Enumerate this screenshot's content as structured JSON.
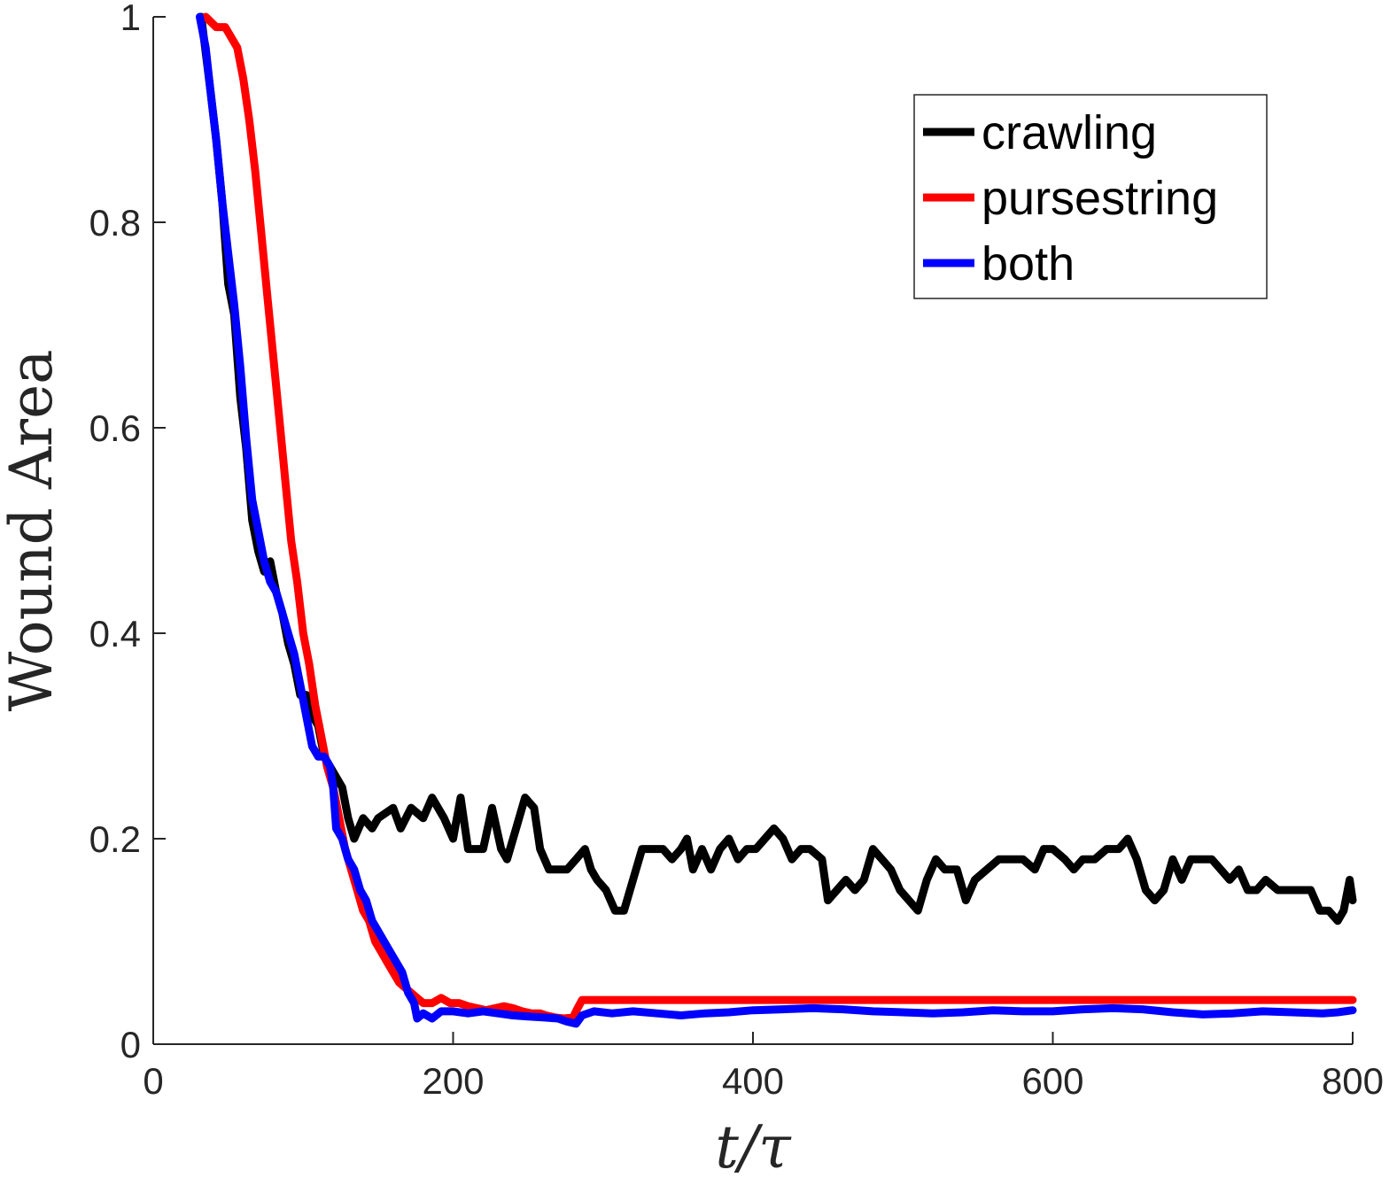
{
  "chart_data": {
    "type": "line",
    "title": "",
    "xlabel": "t/τ",
    "ylabel": "Wound Area",
    "xlim": [
      0,
      800
    ],
    "ylim": [
      0,
      1
    ],
    "xticks": [
      "0",
      "200",
      "400",
      "600",
      "800"
    ],
    "yticks": [
      "0",
      "0.2",
      "0.4",
      "0.6",
      "0.8",
      "1"
    ],
    "grid": false,
    "legend_position": "top-right",
    "series": [
      {
        "name": "crawling",
        "color": "#000000",
        "points": [
          [
            32,
            1.0
          ],
          [
            38,
            0.93
          ],
          [
            42,
            0.88
          ],
          [
            46,
            0.82
          ],
          [
            50,
            0.74
          ],
          [
            54,
            0.71
          ],
          [
            58,
            0.63
          ],
          [
            62,
            0.58
          ],
          [
            66,
            0.51
          ],
          [
            70,
            0.48
          ],
          [
            74,
            0.46
          ],
          [
            78,
            0.47
          ],
          [
            82,
            0.44
          ],
          [
            86,
            0.42
          ],
          [
            90,
            0.39
          ],
          [
            94,
            0.37
          ],
          [
            98,
            0.34
          ],
          [
            102,
            0.34
          ],
          [
            106,
            0.32
          ],
          [
            110,
            0.31
          ],
          [
            114,
            0.28
          ],
          [
            118,
            0.27
          ],
          [
            122,
            0.26
          ],
          [
            126,
            0.25
          ],
          [
            130,
            0.22
          ],
          [
            134,
            0.2
          ],
          [
            140,
            0.22
          ],
          [
            146,
            0.21
          ],
          [
            150,
            0.22
          ],
          [
            160,
            0.23
          ],
          [
            165,
            0.21
          ],
          [
            172,
            0.23
          ],
          [
            180,
            0.22
          ],
          [
            186,
            0.24
          ],
          [
            194,
            0.22
          ],
          [
            200,
            0.2
          ],
          [
            205,
            0.24
          ],
          [
            210,
            0.19
          ],
          [
            220,
            0.19
          ],
          [
            226,
            0.23
          ],
          [
            232,
            0.19
          ],
          [
            236,
            0.18
          ],
          [
            242,
            0.21
          ],
          [
            248,
            0.24
          ],
          [
            254,
            0.23
          ],
          [
            258,
            0.19
          ],
          [
            264,
            0.17
          ],
          [
            270,
            0.17
          ],
          [
            276,
            0.17
          ],
          [
            282,
            0.18
          ],
          [
            288,
            0.19
          ],
          [
            292,
            0.17
          ],
          [
            296,
            0.16
          ],
          [
            302,
            0.15
          ],
          [
            308,
            0.13
          ],
          [
            314,
            0.13
          ],
          [
            320,
            0.16
          ],
          [
            326,
            0.19
          ],
          [
            334,
            0.19
          ],
          [
            340,
            0.19
          ],
          [
            346,
            0.18
          ],
          [
            352,
            0.19
          ],
          [
            356,
            0.2
          ],
          [
            360,
            0.17
          ],
          [
            366,
            0.19
          ],
          [
            372,
            0.17
          ],
          [
            378,
            0.19
          ],
          [
            384,
            0.2
          ],
          [
            390,
            0.18
          ],
          [
            396,
            0.19
          ],
          [
            402,
            0.19
          ],
          [
            408,
            0.2
          ],
          [
            414,
            0.21
          ],
          [
            420,
            0.2
          ],
          [
            426,
            0.18
          ],
          [
            432,
            0.19
          ],
          [
            438,
            0.19
          ],
          [
            446,
            0.18
          ],
          [
            450,
            0.14
          ],
          [
            456,
            0.15
          ],
          [
            462,
            0.16
          ],
          [
            468,
            0.15
          ],
          [
            474,
            0.16
          ],
          [
            480,
            0.19
          ],
          [
            486,
            0.18
          ],
          [
            492,
            0.17
          ],
          [
            498,
            0.15
          ],
          [
            504,
            0.14
          ],
          [
            510,
            0.13
          ],
          [
            516,
            0.16
          ],
          [
            522,
            0.18
          ],
          [
            528,
            0.17
          ],
          [
            536,
            0.17
          ],
          [
            542,
            0.14
          ],
          [
            548,
            0.16
          ],
          [
            556,
            0.17
          ],
          [
            564,
            0.18
          ],
          [
            572,
            0.18
          ],
          [
            580,
            0.18
          ],
          [
            588,
            0.17
          ],
          [
            594,
            0.19
          ],
          [
            600,
            0.19
          ],
          [
            608,
            0.18
          ],
          [
            614,
            0.17
          ],
          [
            620,
            0.18
          ],
          [
            628,
            0.18
          ],
          [
            636,
            0.19
          ],
          [
            644,
            0.19
          ],
          [
            650,
            0.2
          ],
          [
            656,
            0.18
          ],
          [
            662,
            0.15
          ],
          [
            668,
            0.14
          ],
          [
            674,
            0.15
          ],
          [
            680,
            0.18
          ],
          [
            686,
            0.16
          ],
          [
            692,
            0.18
          ],
          [
            698,
            0.18
          ],
          [
            706,
            0.18
          ],
          [
            712,
            0.17
          ],
          [
            718,
            0.16
          ],
          [
            724,
            0.17
          ],
          [
            730,
            0.15
          ],
          [
            736,
            0.15
          ],
          [
            742,
            0.16
          ],
          [
            750,
            0.15
          ],
          [
            758,
            0.15
          ],
          [
            766,
            0.15
          ],
          [
            772,
            0.15
          ],
          [
            778,
            0.13
          ],
          [
            784,
            0.13
          ],
          [
            790,
            0.12
          ],
          [
            794,
            0.13
          ],
          [
            798,
            0.16
          ],
          [
            800,
            0.14
          ]
        ]
      },
      {
        "name": "pursestring",
        "color": "#ff0000",
        "points": [
          [
            35,
            1.0
          ],
          [
            42,
            0.99
          ],
          [
            48,
            0.99
          ],
          [
            52,
            0.98
          ],
          [
            56,
            0.97
          ],
          [
            60,
            0.94
          ],
          [
            64,
            0.9
          ],
          [
            68,
            0.85
          ],
          [
            72,
            0.79
          ],
          [
            76,
            0.73
          ],
          [
            80,
            0.67
          ],
          [
            84,
            0.61
          ],
          [
            88,
            0.55
          ],
          [
            92,
            0.49
          ],
          [
            96,
            0.45
          ],
          [
            100,
            0.4
          ],
          [
            104,
            0.37
          ],
          [
            108,
            0.33
          ],
          [
            112,
            0.3
          ],
          [
            116,
            0.27
          ],
          [
            120,
            0.25
          ],
          [
            124,
            0.22
          ],
          [
            128,
            0.19
          ],
          [
            132,
            0.17
          ],
          [
            136,
            0.15
          ],
          [
            140,
            0.13
          ],
          [
            144,
            0.12
          ],
          [
            148,
            0.1
          ],
          [
            152,
            0.09
          ],
          [
            156,
            0.08
          ],
          [
            160,
            0.07
          ],
          [
            164,
            0.06
          ],
          [
            168,
            0.055
          ],
          [
            172,
            0.05
          ],
          [
            176,
            0.045
          ],
          [
            180,
            0.04
          ],
          [
            186,
            0.04
          ],
          [
            192,
            0.045
          ],
          [
            198,
            0.04
          ],
          [
            204,
            0.04
          ],
          [
            210,
            0.037
          ],
          [
            216,
            0.035
          ],
          [
            222,
            0.033
          ],
          [
            228,
            0.035
          ],
          [
            234,
            0.037
          ],
          [
            240,
            0.035
          ],
          [
            246,
            0.032
          ],
          [
            252,
            0.03
          ],
          [
            258,
            0.03
          ],
          [
            262,
            0.028
          ],
          [
            268,
            0.026
          ],
          [
            274,
            0.025
          ],
          [
            280,
            0.026
          ],
          [
            283,
            0.035
          ],
          [
            286,
            0.043
          ],
          [
            300,
            0.043
          ],
          [
            400,
            0.043
          ],
          [
            500,
            0.043
          ],
          [
            600,
            0.043
          ],
          [
            700,
            0.043
          ],
          [
            800,
            0.043
          ]
        ]
      },
      {
        "name": "both",
        "color": "#0000ff",
        "points": [
          [
            31,
            1.0
          ],
          [
            35,
            0.97
          ],
          [
            38,
            0.93
          ],
          [
            42,
            0.88
          ],
          [
            46,
            0.82
          ],
          [
            50,
            0.77
          ],
          [
            54,
            0.72
          ],
          [
            58,
            0.66
          ],
          [
            62,
            0.59
          ],
          [
            66,
            0.53
          ],
          [
            70,
            0.5
          ],
          [
            74,
            0.47
          ],
          [
            78,
            0.45
          ],
          [
            82,
            0.44
          ],
          [
            86,
            0.42
          ],
          [
            90,
            0.4
          ],
          [
            94,
            0.38
          ],
          [
            98,
            0.35
          ],
          [
            102,
            0.32
          ],
          [
            106,
            0.29
          ],
          [
            110,
            0.28
          ],
          [
            114,
            0.28
          ],
          [
            118,
            0.27
          ],
          [
            120,
            0.25
          ],
          [
            122,
            0.21
          ],
          [
            126,
            0.2
          ],
          [
            130,
            0.18
          ],
          [
            134,
            0.17
          ],
          [
            138,
            0.15
          ],
          [
            142,
            0.14
          ],
          [
            146,
            0.12
          ],
          [
            150,
            0.11
          ],
          [
            154,
            0.1
          ],
          [
            158,
            0.09
          ],
          [
            162,
            0.08
          ],
          [
            166,
            0.07
          ],
          [
            170,
            0.05
          ],
          [
            174,
            0.04
          ],
          [
            176,
            0.025
          ],
          [
            180,
            0.03
          ],
          [
            186,
            0.025
          ],
          [
            192,
            0.032
          ],
          [
            200,
            0.032
          ],
          [
            210,
            0.03
          ],
          [
            220,
            0.032
          ],
          [
            230,
            0.03
          ],
          [
            240,
            0.028
          ],
          [
            250,
            0.027
          ],
          [
            260,
            0.026
          ],
          [
            270,
            0.025
          ],
          [
            276,
            0.022
          ],
          [
            282,
            0.02
          ],
          [
            286,
            0.028
          ],
          [
            294,
            0.032
          ],
          [
            306,
            0.03
          ],
          [
            320,
            0.032
          ],
          [
            336,
            0.03
          ],
          [
            352,
            0.028
          ],
          [
            368,
            0.03
          ],
          [
            384,
            0.031
          ],
          [
            400,
            0.033
          ],
          [
            420,
            0.034
          ],
          [
            440,
            0.035
          ],
          [
            460,
            0.034
          ],
          [
            480,
            0.032
          ],
          [
            500,
            0.031
          ],
          [
            520,
            0.03
          ],
          [
            540,
            0.031
          ],
          [
            560,
            0.033
          ],
          [
            580,
            0.032
          ],
          [
            600,
            0.032
          ],
          [
            620,
            0.034
          ],
          [
            640,
            0.035
          ],
          [
            660,
            0.034
          ],
          [
            680,
            0.031
          ],
          [
            700,
            0.029
          ],
          [
            720,
            0.03
          ],
          [
            740,
            0.032
          ],
          [
            760,
            0.031
          ],
          [
            780,
            0.03
          ],
          [
            790,
            0.031
          ],
          [
            800,
            0.033
          ]
        ]
      }
    ]
  }
}
